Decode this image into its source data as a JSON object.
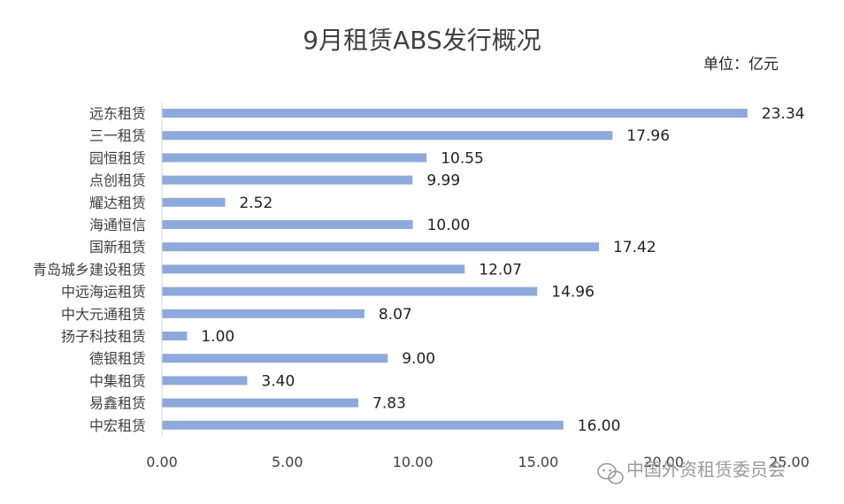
{
  "chart_data": {
    "type": "bar",
    "orientation": "horizontal",
    "title": "9月租赁ABS发行概况",
    "unit": "单位：亿元",
    "categories": [
      "远东租赁",
      "三一租赁",
      "园恒租赁",
      "点创租赁",
      "耀达租赁",
      "海通恒信",
      "国新租赁",
      "青岛城乡建设租赁",
      "中远海运租赁",
      "中大元通租赁",
      "扬子科技租赁",
      "德银租赁",
      "中集租赁",
      "易鑫租赁",
      "中宏租赁"
    ],
    "values": [
      23.34,
      17.96,
      10.55,
      9.99,
      2.52,
      10.0,
      17.42,
      12.07,
      14.96,
      8.07,
      1.0,
      9.0,
      3.4,
      7.83,
      16.0
    ],
    "value_labels": [
      "23.34",
      "17.96",
      "10.55",
      "9.99",
      "2.52",
      "10.00",
      "17.42",
      "12.07",
      "14.96",
      "8.07",
      "1.00",
      "9.00",
      "3.40",
      "7.83",
      "16.00"
    ],
    "xlim": [
      0,
      25
    ],
    "x_ticks": [
      "0.00",
      "5.00",
      "10.00",
      "15.00",
      "20.00",
      "25.00"
    ],
    "x_tick_values": [
      0,
      5,
      10,
      15,
      20,
      25
    ],
    "grid": false,
    "legend": "none",
    "bar_color": "#8ea9db"
  },
  "watermark": {
    "icon": "wechat-icon",
    "text": "中国外资租赁委员会"
  }
}
